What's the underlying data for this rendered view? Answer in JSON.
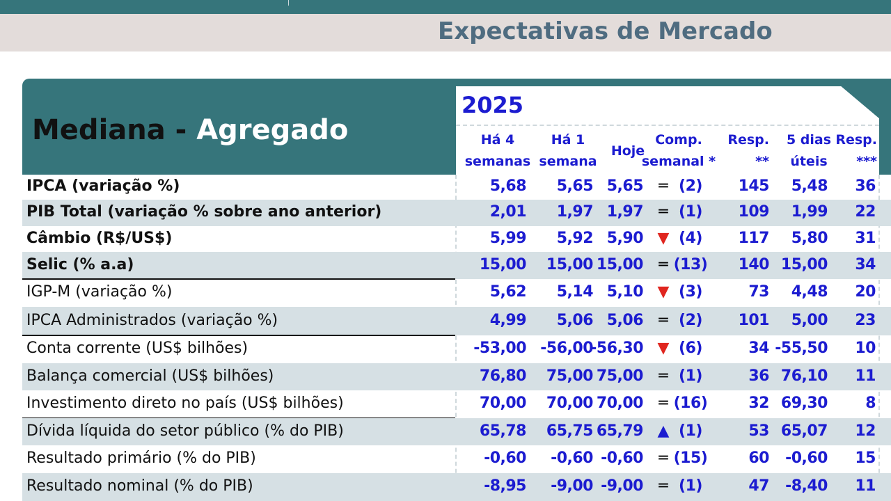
{
  "header": {
    "title": "Expectativas de Mercado"
  },
  "panel": {
    "title_black": "Mediana -",
    "title_white": "Agregado",
    "year": "2025"
  },
  "columns": [
    {
      "line1": "Há 4",
      "line2": "semanas"
    },
    {
      "line1": "Há 1",
      "line2": "semana"
    },
    {
      "line1": "",
      "line2": "Hoje"
    },
    {
      "line1": "Comp.",
      "line2": "semanal *"
    },
    {
      "line1": "Resp.",
      "line2": "**"
    },
    {
      "line1": "5 dias",
      "line2": "úteis"
    },
    {
      "line1": "Resp.",
      "line2": "***"
    }
  ],
  "symbols": {
    "equal": "═",
    "down": "▼",
    "up": "▲"
  },
  "rows": [
    {
      "label": "IPCA (variação %)",
      "bold": true,
      "v4": "5,68",
      "v1": "5,65",
      "hoje": "5,65",
      "trend": "equal",
      "weeks": "(2)",
      "resp": "145",
      "d5": "5,48",
      "resp2": "36"
    },
    {
      "label": "PIB Total (variação % sobre ano anterior)",
      "bold": true,
      "v4": "2,01",
      "v1": "1,97",
      "hoje": "1,97",
      "trend": "equal",
      "weeks": "(1)",
      "resp": "109",
      "d5": "1,99",
      "resp2": "22"
    },
    {
      "label": "Câmbio (R$/US$)",
      "bold": true,
      "v4": "5,99",
      "v1": "5,92",
      "hoje": "5,90",
      "trend": "down",
      "weeks": "(4)",
      "resp": "117",
      "d5": "5,80",
      "resp2": "31"
    },
    {
      "label": "Selic (% a.a)",
      "bold": true,
      "v4": "15,00",
      "v1": "15,00",
      "hoje": "15,00",
      "trend": "equal",
      "weeks": "(13)",
      "resp": "140",
      "d5": "15,00",
      "resp2": "34"
    },
    {
      "label": "IGP-M (variação %)",
      "bold": false,
      "v4": "5,62",
      "v1": "5,14",
      "hoje": "5,10",
      "trend": "down",
      "weeks": "(3)",
      "resp": "73",
      "d5": "4,48",
      "resp2": "20"
    },
    {
      "label": "IPCA Administrados (variação %)",
      "bold": false,
      "v4": "4,99",
      "v1": "5,06",
      "hoje": "5,06",
      "trend": "equal",
      "weeks": "(2)",
      "resp": "101",
      "d5": "5,00",
      "resp2": "23"
    },
    {
      "label": "Conta corrente (US$ bilhões)",
      "bold": false,
      "v4": "-53,00",
      "v1": "-56,00",
      "hoje": "-56,30",
      "trend": "down",
      "weeks": "(6)",
      "resp": "34",
      "d5": "-55,50",
      "resp2": "10"
    },
    {
      "label": "Balança comercial (US$ bilhões)",
      "bold": false,
      "v4": "76,80",
      "v1": "75,00",
      "hoje": "75,00",
      "trend": "equal",
      "weeks": "(1)",
      "resp": "36",
      "d5": "76,10",
      "resp2": "11"
    },
    {
      "label": "Investimento direto no país (US$ bilhões)",
      "bold": false,
      "v4": "70,00",
      "v1": "70,00",
      "hoje": "70,00",
      "trend": "equal",
      "weeks": "(16)",
      "resp": "32",
      "d5": "69,30",
      "resp2": "8"
    },
    {
      "label": "Dívida líquida do setor público (% do PIB)",
      "bold": false,
      "v4": "65,78",
      "v1": "65,75",
      "hoje": "65,79",
      "trend": "up",
      "weeks": "(1)",
      "resp": "53",
      "d5": "65,07",
      "resp2": "12"
    },
    {
      "label": "Resultado primário (% do PIB)",
      "bold": false,
      "v4": "-0,60",
      "v1": "-0,60",
      "hoje": "-0,60",
      "trend": "equal",
      "weeks": "(15)",
      "resp": "60",
      "d5": "-0,60",
      "resp2": "15"
    },
    {
      "label": "Resultado nominal (% do PIB)",
      "bold": false,
      "v4": "-8,95",
      "v1": "-9,00",
      "hoje": "-9,00",
      "trend": "equal",
      "weeks": "(1)",
      "resp": "47",
      "d5": "-8,40",
      "resp2": "11"
    }
  ]
}
